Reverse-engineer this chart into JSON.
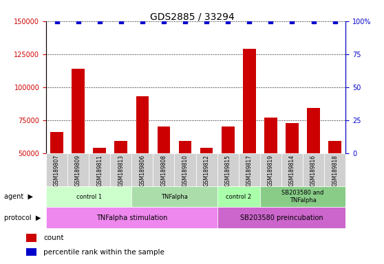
{
  "title": "GDS2885 / 33294",
  "samples": [
    "GSM189807",
    "GSM189809",
    "GSM189811",
    "GSM189813",
    "GSM189806",
    "GSM189808",
    "GSM189810",
    "GSM189812",
    "GSM189815",
    "GSM189817",
    "GSM189819",
    "GSM189814",
    "GSM189816",
    "GSM189818"
  ],
  "counts": [
    66000,
    114000,
    54000,
    59000,
    93000,
    70000,
    59000,
    54000,
    70000,
    129000,
    77000,
    73000,
    84000,
    59000
  ],
  "percentile_ranks": [
    100,
    100,
    100,
    100,
    100,
    100,
    100,
    100,
    100,
    100,
    100,
    100,
    100,
    100
  ],
  "ylim_left": [
    50000,
    150000
  ],
  "ylim_right": [
    0,
    100
  ],
  "yticks_left": [
    50000,
    75000,
    100000,
    125000,
    150000
  ],
  "yticks_right": [
    0,
    25,
    50,
    75,
    100
  ],
  "bar_color": "#cc0000",
  "scatter_color": "#0000cc",
  "grid_color": "#000000",
  "agent_groups": [
    {
      "label": "control 1",
      "start": 0,
      "end": 4,
      "color": "#ccffcc"
    },
    {
      "label": "TNFalpha",
      "start": 4,
      "end": 8,
      "color": "#aaddaa"
    },
    {
      "label": "control 2",
      "start": 8,
      "end": 10,
      "color": "#aaffaa"
    },
    {
      "label": "SB203580 and\nTNFalpha",
      "start": 10,
      "end": 14,
      "color": "#88cc88"
    }
  ],
  "protocol_groups": [
    {
      "label": "TNFalpha stimulation",
      "start": 0,
      "end": 8,
      "color": "#ee88ee"
    },
    {
      "label": "SB203580 preincubation",
      "start": 8,
      "end": 14,
      "color": "#cc66cc"
    }
  ],
  "legend_items": [
    {
      "color": "#cc0000",
      "label": "count"
    },
    {
      "color": "#0000cc",
      "label": "percentile rank within the sample"
    }
  ],
  "background_color": "#ffffff",
  "plot_bg_color": "#f0f0f0",
  "left_label_color": "#cc0000",
  "right_label_color": "#0000cc"
}
